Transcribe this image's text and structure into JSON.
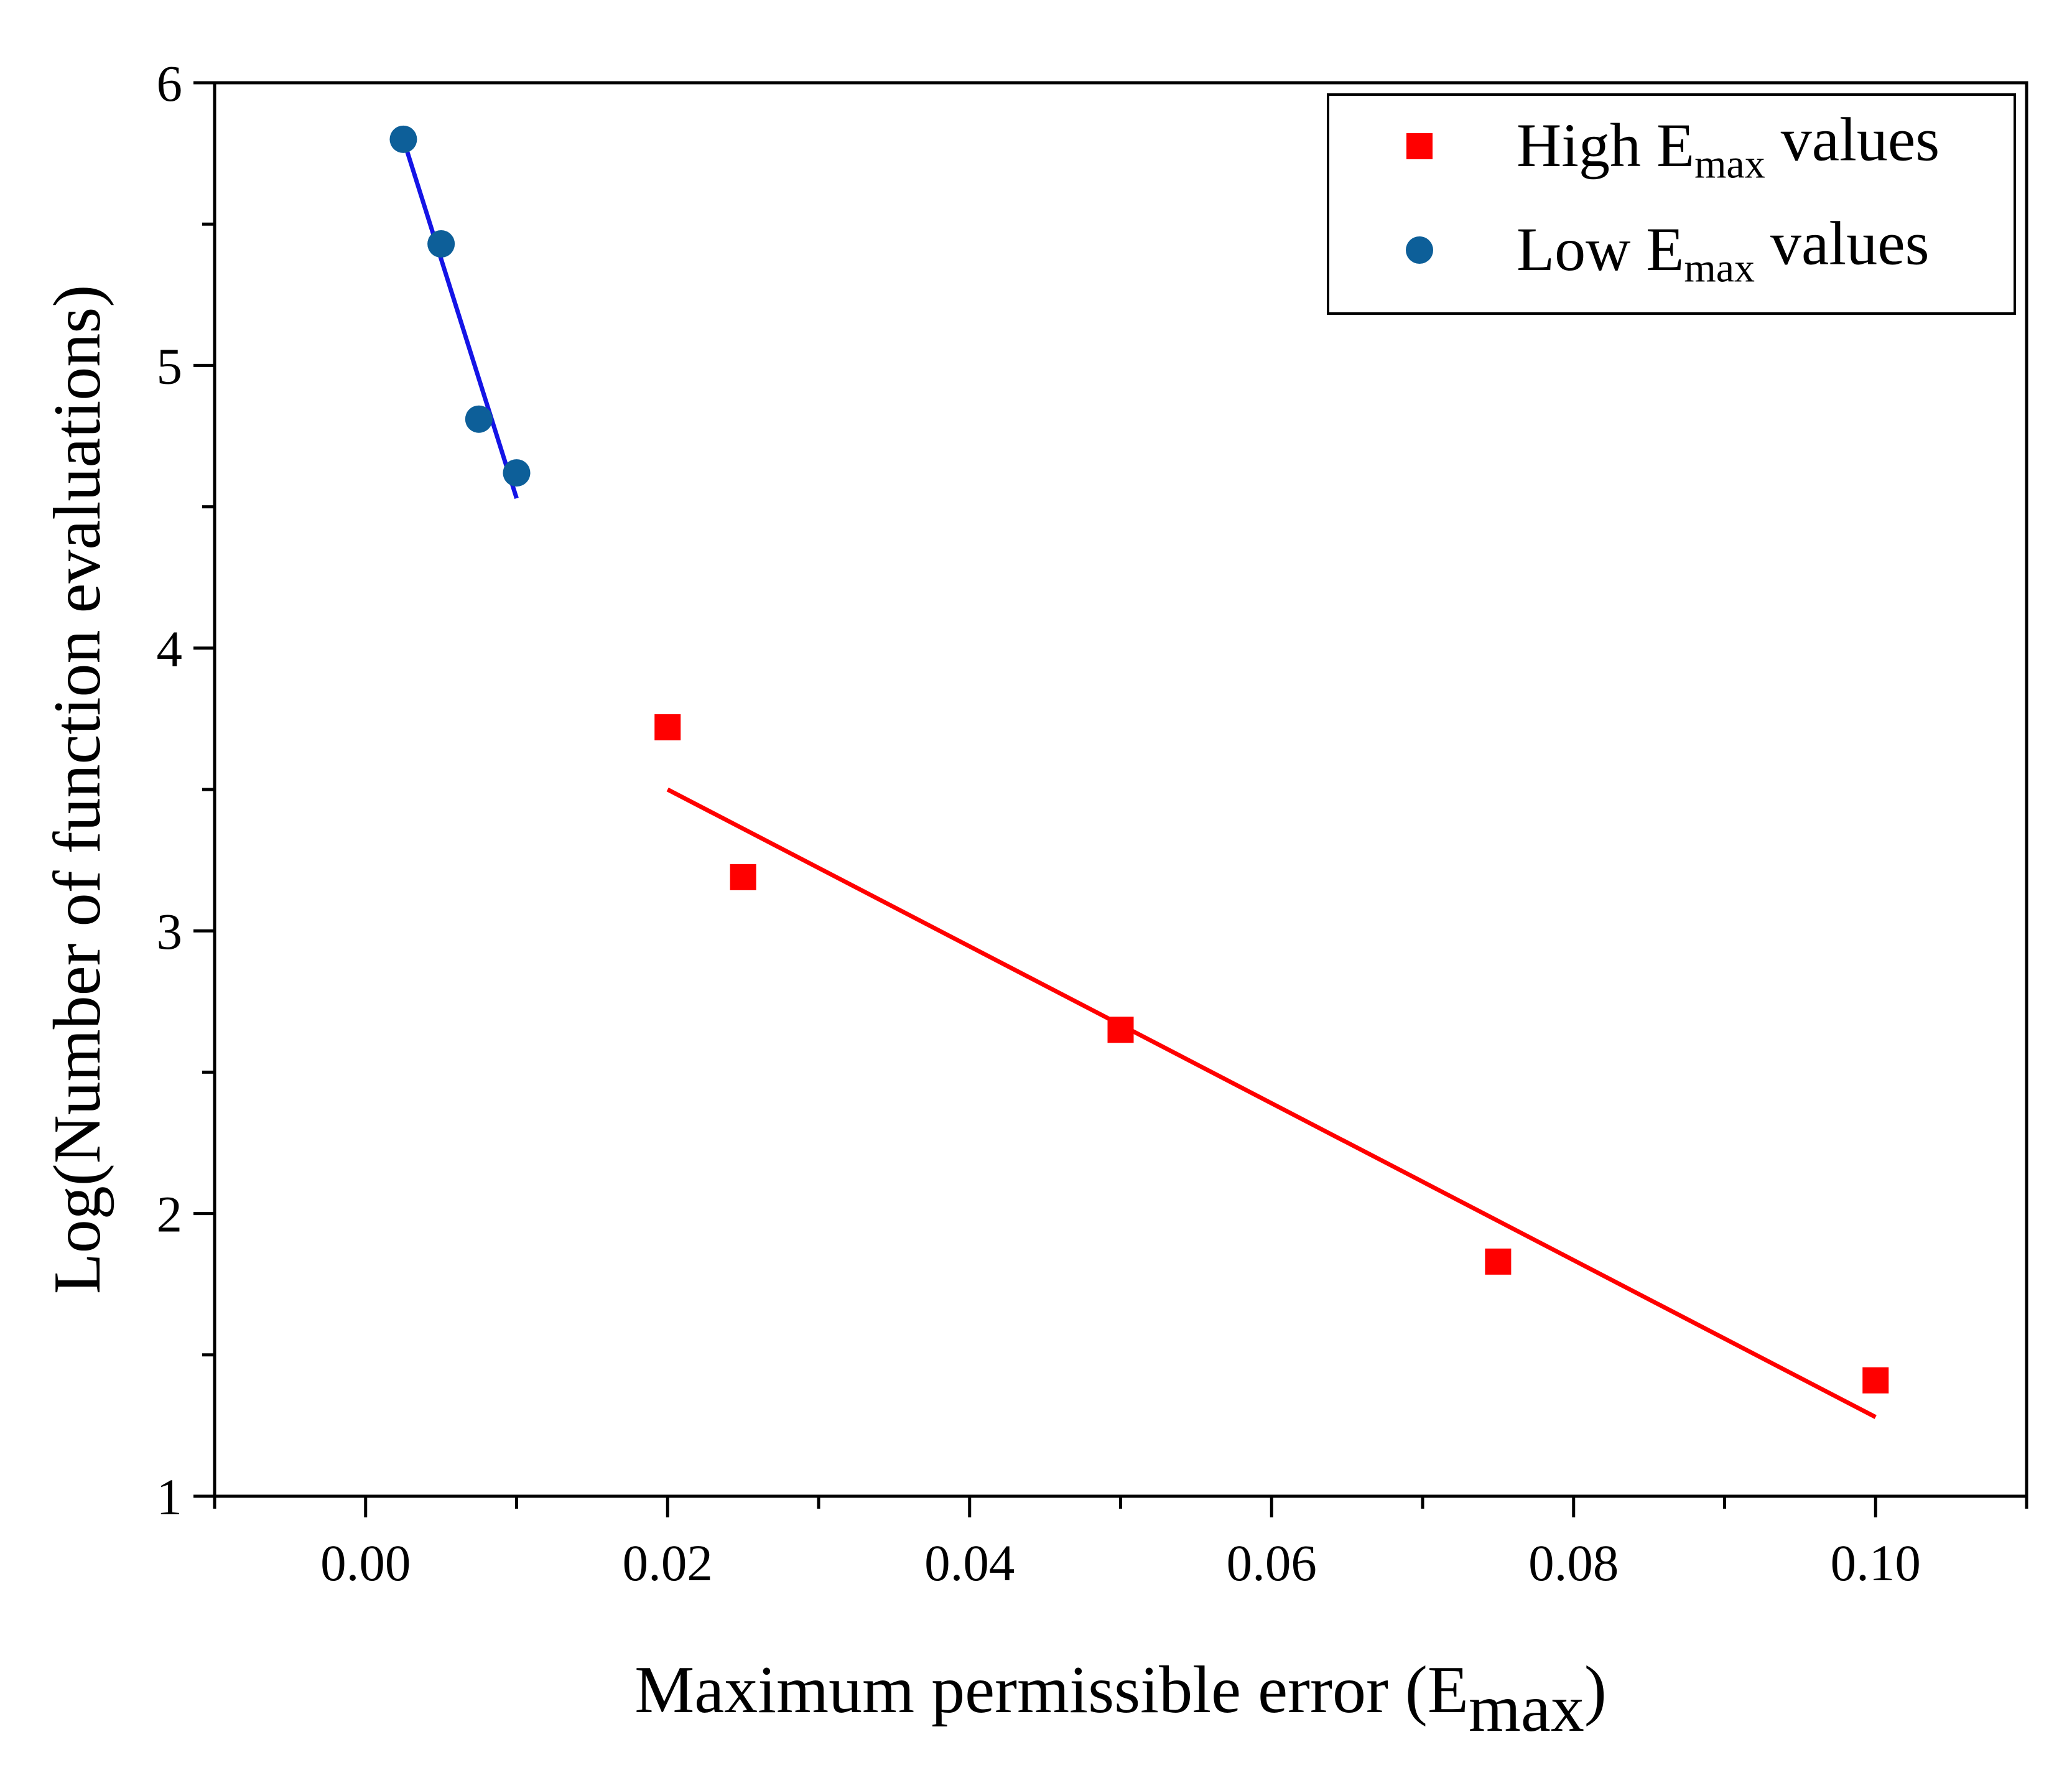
{
  "chart_data": {
    "type": "scatter",
    "xlabel": "Maximum permissible error (E",
    "xlabel_sub": "max",
    "xlabel_end": ")",
    "ylabel": "Log(Number of function evaluations)",
    "xlim": [
      -0.01,
      0.11
    ],
    "ylim": [
      1,
      6
    ],
    "x_ticks": [
      0.0,
      0.02,
      0.04,
      0.06,
      0.08,
      0.1
    ],
    "x_tick_labels": [
      "0.00",
      "0.02",
      "0.04",
      "0.06",
      "0.08",
      "0.10"
    ],
    "x_minor_ticks": [
      -0.01,
      0.01,
      0.03,
      0.05,
      0.07,
      0.09,
      0.11
    ],
    "y_ticks": [
      1,
      2,
      3,
      4,
      5,
      6
    ],
    "y_tick_labels": [
      "1",
      "2",
      "3",
      "4",
      "5",
      "6"
    ],
    "y_minor_ticks": [
      1.5,
      2.5,
      3.5,
      4.5,
      5.5
    ],
    "grid": false,
    "legend_position": "top-right",
    "series": [
      {
        "name": "High E",
        "name_sub": "max",
        "name_end": " values",
        "marker": "square",
        "color": "#ff0000",
        "points": [
          {
            "x": 0.02,
            "y": 3.72
          },
          {
            "x": 0.025,
            "y": 3.19
          },
          {
            "x": 0.05,
            "y": 2.65
          },
          {
            "x": 0.075,
            "y": 1.83
          },
          {
            "x": 0.1,
            "y": 1.41
          }
        ],
        "fit_line": {
          "x": [
            0.02,
            0.1
          ],
          "y": [
            3.5,
            1.28
          ]
        }
      },
      {
        "name": "Low E",
        "name_sub": "max",
        "name_end": " values",
        "marker": "circle",
        "color": "#0d5f99",
        "line_color": "#1414e6",
        "points": [
          {
            "x": 0.0025,
            "y": 5.8
          },
          {
            "x": 0.005,
            "y": 5.43
          },
          {
            "x": 0.0075,
            "y": 4.81
          },
          {
            "x": 0.01,
            "y": 4.62
          }
        ],
        "fit_line": {
          "x": [
            0.0025,
            0.01
          ],
          "y": [
            5.8,
            4.53
          ]
        }
      }
    ]
  }
}
